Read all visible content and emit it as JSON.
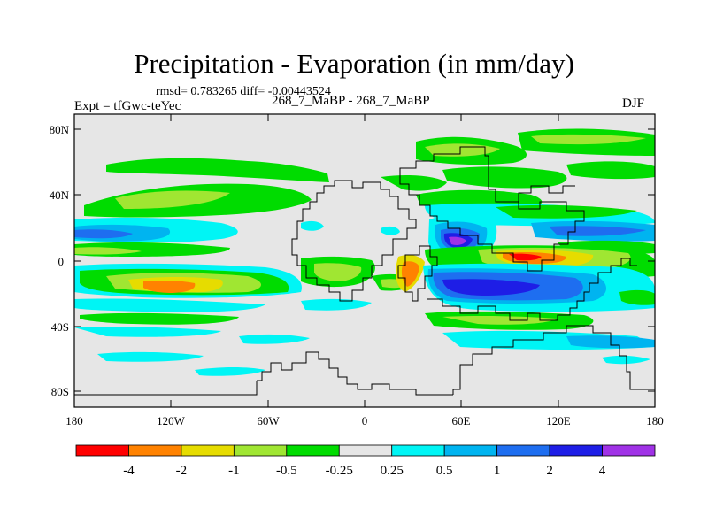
{
  "title": "Precipitation - Evaporation (in mm/day)",
  "stats": {
    "rmsd_label": "rmsd= 0.783265 diff= -0.00443524"
  },
  "experiment": {
    "label": "Expt = tfGwc-teYec"
  },
  "runs": {
    "label": "268_7_MaBP - 268_7_MaBP"
  },
  "season": {
    "label": "DJF"
  },
  "axes": {
    "y_ticks": [
      "80N",
      "40N",
      "0",
      "40S",
      "80S"
    ],
    "x_ticks": [
      "180",
      "120W",
      "60W",
      "0",
      "60E",
      "120E",
      "180"
    ]
  },
  "colorbar": {
    "colors": [
      "#ff0000",
      "#ff8200",
      "#e6dc00",
      "#a0e632",
      "#00dc00",
      "#e6e6e6",
      "#00f5f5",
      "#00b4f0",
      "#1e6ef0",
      "#1e1ee6",
      "#a032e6"
    ],
    "labels": [
      "-4",
      "-2",
      "-1",
      "-0.5",
      "-0.25",
      "0.25",
      "0.5",
      "1",
      "2",
      "4"
    ]
  },
  "colors": {
    "background": "#e6e6e6",
    "coast": "#000000"
  }
}
